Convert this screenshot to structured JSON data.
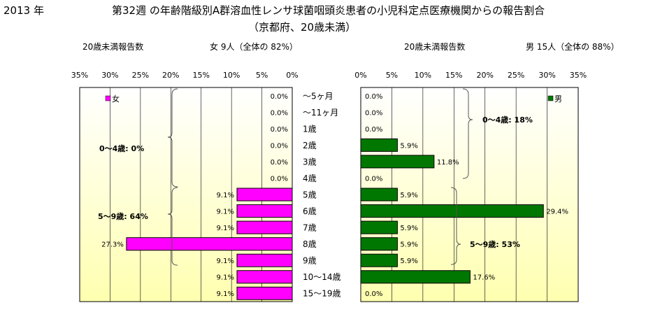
{
  "header": {
    "year": "2013 年",
    "title": "第32週 の年齢階級別A群溶血性レンサ球菌咽頭炎患者の小児科定点医療機関からの報告割合",
    "subtitle": "（京都府、20歳未満）"
  },
  "chart_data": {
    "type": "bar",
    "orientation": "horizontal",
    "layout": "population-pyramid",
    "categories": [
      "～5ヶ月",
      "～11ヶ月",
      "1歳",
      "2歳",
      "3歳",
      "4歳",
      "5歳",
      "6歳",
      "7歳",
      "8歳",
      "9歳",
      "10～14歳",
      "15～19歳"
    ],
    "axis_ticks": [
      "0%",
      "5%",
      "10%",
      "15%",
      "20%",
      "25%",
      "30%",
      "35%"
    ],
    "xlim": [
      0,
      35
    ],
    "grid": "vertical",
    "female": {
      "header_left": "20歳未満報告数",
      "header_right": "女 9人（全体の 82%）",
      "legend": "女",
      "legend_position": "top-left",
      "color": "#ff00ff",
      "values": [
        0.0,
        0.0,
        0.0,
        0.0,
        0.0,
        0.0,
        9.1,
        9.1,
        9.1,
        27.3,
        9.1,
        9.1,
        9.1
      ],
      "labels": [
        "0.0%",
        "0.0%",
        "0.0%",
        "0.0%",
        "0.0%",
        "0.0%",
        "9.1%",
        "9.1%",
        "9.1%",
        "27.3%",
        "9.1%",
        "9.1%",
        "9.1%"
      ],
      "group_labels": [
        "0～4歳:  0%",
        "5～9歳:  64%"
      ]
    },
    "male": {
      "header_left": "20歳未満報告数",
      "header_right": "男 15人（全体の 88%）",
      "legend": "男",
      "legend_position": "top-right",
      "color": "#007700",
      "values": [
        0.0,
        0.0,
        0.0,
        5.9,
        11.8,
        0.0,
        5.9,
        29.4,
        5.9,
        5.9,
        5.9,
        17.6,
        0.0
      ],
      "labels": [
        "0.0%",
        "0.0%",
        "0.0%",
        "5.9%",
        "11.8%",
        "0.0%",
        "5.9%",
        "29.4%",
        "5.9%",
        "5.9%",
        "5.9%",
        "17.6%",
        "0.0%"
      ],
      "group_labels": [
        "0～4歳:  18%",
        "5～9歳:  53%"
      ]
    }
  },
  "colors": {
    "plot_bg_top": "#ffffff",
    "plot_bg_bottom": "#ffffb0",
    "female_bar": "#ff00ff",
    "male_bar": "#007700"
  }
}
